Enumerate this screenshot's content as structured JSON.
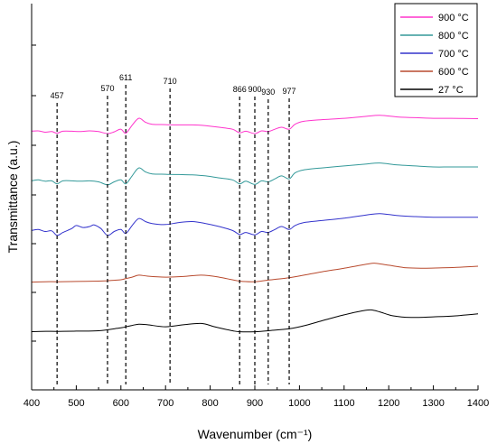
{
  "chart_data": {
    "type": "line",
    "xlabel": "Wavenumber (cm⁻¹)",
    "ylabel": "Transmittance (a.u.)",
    "xlim": [
      400,
      1400
    ],
    "xticks": [
      "400",
      "500",
      "600",
      "700",
      "800",
      "900",
      "1000",
      "1100",
      "1200",
      "1300",
      "1400"
    ],
    "grid": false,
    "legend_position": "top-right",
    "peaks": [
      {
        "label": "457",
        "x": 457
      },
      {
        "label": "570",
        "x": 570
      },
      {
        "label": "611",
        "x": 611
      },
      {
        "label": "710",
        "x": 710
      },
      {
        "label": "866",
        "x": 866
      },
      {
        "label": "900",
        "x": 900
      },
      {
        "label": "930",
        "x": 930
      },
      {
        "label": "977",
        "x": 977
      }
    ],
    "series": [
      {
        "name": "900 °C",
        "color": "#ff33cc",
        "offset": 4,
        "x": [
          400,
          415,
          430,
          445,
          457,
          470,
          490,
          510,
          530,
          550,
          570,
          585,
          600,
          611,
          625,
          640,
          655,
          670,
          700,
          730,
          760,
          790,
          820,
          850,
          866,
          880,
          900,
          915,
          930,
          945,
          960,
          977,
          990,
          1010,
          1050,
          1100,
          1150,
          1180,
          1220,
          1260,
          1300,
          1340,
          1400
        ],
        "y": [
          0.3,
          0.32,
          0.25,
          0.28,
          0.2,
          0.3,
          0.3,
          0.28,
          0.32,
          0.28,
          0.18,
          0.27,
          0.4,
          0.2,
          0.6,
          0.95,
          0.75,
          0.65,
          0.63,
          0.62,
          0.62,
          0.58,
          0.5,
          0.4,
          0.22,
          0.3,
          0.18,
          0.32,
          0.28,
          0.4,
          0.5,
          0.4,
          0.65,
          0.8,
          0.88,
          0.95,
          1.05,
          1.1,
          1.02,
          0.98,
          0.95,
          0.95,
          0.93
        ]
      },
      {
        "name": "800 °C",
        "color": "#339999",
        "offset": 3,
        "x": [
          400,
          415,
          430,
          445,
          457,
          470,
          490,
          510,
          530,
          550,
          570,
          585,
          600,
          611,
          625,
          640,
          655,
          670,
          700,
          730,
          760,
          790,
          820,
          850,
          866,
          880,
          900,
          915,
          930,
          945,
          960,
          977,
          990,
          1010,
          1050,
          1100,
          1150,
          1180,
          1220,
          1260,
          1300,
          1340,
          1400
        ],
        "y": [
          0.3,
          0.35,
          0.28,
          0.3,
          0.15,
          0.3,
          0.3,
          0.28,
          0.3,
          0.25,
          0.1,
          0.25,
          0.35,
          0.15,
          0.55,
          0.95,
          0.75,
          0.65,
          0.63,
          0.62,
          0.6,
          0.55,
          0.45,
          0.35,
          0.15,
          0.28,
          0.12,
          0.3,
          0.25,
          0.4,
          0.55,
          0.4,
          0.7,
          0.85,
          0.95,
          1.05,
          1.15,
          1.2,
          1.1,
          1.05,
          1.0,
          1.0,
          1.0
        ]
      },
      {
        "name": "700 °C",
        "color": "#3333cc",
        "offset": 2,
        "x": [
          400,
          415,
          430,
          445,
          457,
          470,
          490,
          500,
          515,
          530,
          540,
          555,
          570,
          585,
          600,
          611,
          625,
          640,
          655,
          670,
          700,
          730,
          760,
          790,
          820,
          850,
          866,
          880,
          900,
          915,
          930,
          945,
          960,
          977,
          990,
          1010,
          1050,
          1100,
          1150,
          1180,
          1220,
          1260,
          1300,
          1340,
          1400
        ],
        "y": [
          0.3,
          0.35,
          0.25,
          0.28,
          0.05,
          0.2,
          0.4,
          0.55,
          0.45,
          0.5,
          0.58,
          0.4,
          0.05,
          0.25,
          0.35,
          0.15,
          0.55,
          0.9,
          0.75,
          0.65,
          0.6,
          0.7,
          0.75,
          0.65,
          0.5,
          0.3,
          0.1,
          0.2,
          0.08,
          0.25,
          0.2,
          0.35,
          0.5,
          0.35,
          0.55,
          0.7,
          0.8,
          0.92,
          1.08,
          1.15,
          1.05,
          1.0,
          0.97,
          0.97,
          0.97
        ]
      },
      {
        "name": "600 °C",
        "color": "#b84a2e",
        "offset": 1,
        "x": [
          400,
          430,
          457,
          500,
          550,
          570,
          600,
          611,
          625,
          640,
          660,
          700,
          740,
          780,
          820,
          866,
          900,
          930,
          977,
          1010,
          1050,
          1100,
          1150,
          1170,
          1200,
          1240,
          1280,
          1320,
          1360,
          1400
        ],
        "y": [
          0.2,
          0.22,
          0.22,
          0.23,
          0.25,
          0.27,
          0.32,
          0.38,
          0.45,
          0.55,
          0.5,
          0.45,
          0.48,
          0.55,
          0.45,
          0.25,
          0.22,
          0.3,
          0.42,
          0.55,
          0.72,
          0.9,
          1.1,
          1.15,
          1.05,
          0.92,
          0.9,
          0.92,
          0.95,
          1.0
        ]
      },
      {
        "name": "27 °C",
        "color": "#000000",
        "offset": 0,
        "x": [
          400,
          420,
          457,
          500,
          550,
          600,
          611,
          625,
          640,
          660,
          700,
          740,
          780,
          810,
          850,
          866,
          900,
          930,
          977,
          1010,
          1050,
          1100,
          1140,
          1160,
          1180,
          1210,
          1250,
          1300,
          1350,
          1400
        ],
        "y": [
          0.2,
          0.22,
          0.22,
          0.23,
          0.25,
          0.4,
          0.45,
          0.52,
          0.58,
          0.55,
          0.45,
          0.55,
          0.62,
          0.45,
          0.25,
          0.2,
          0.2,
          0.25,
          0.35,
          0.5,
          0.75,
          1.05,
          1.25,
          1.3,
          1.2,
          1.0,
          0.92,
          0.95,
          1.0,
          1.1
        ]
      }
    ]
  }
}
